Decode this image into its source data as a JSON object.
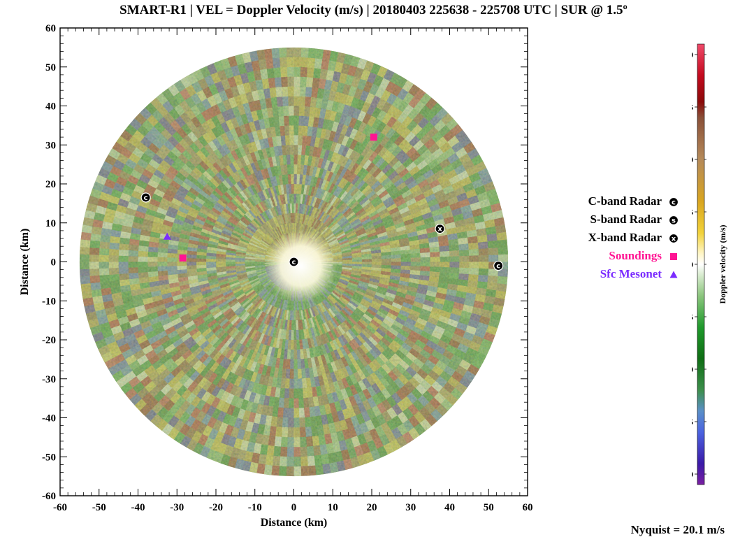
{
  "title": "SMART-R1 | VEL = Doppler Velocity (m/s) | 20180403 225638 - 225708 UTC | SUR @ 1.5º",
  "nyquist_label": "Nyquist = 20.1 m/s",
  "legend": [
    {
      "label": "C-band Radar",
      "symbol": "C",
      "color": "#000000",
      "kind": "radar"
    },
    {
      "label": "S-band Radar",
      "symbol": "S",
      "color": "#000000",
      "kind": "radar"
    },
    {
      "label": "X-band Radar",
      "symbol": "X",
      "color": "#000000",
      "kind": "radar"
    },
    {
      "label": "Soundings",
      "symbol": "square",
      "color": "#ff1493",
      "kind": "square"
    },
    {
      "label": "Sfc Mesonet",
      "symbol": "triangle",
      "color": "#7b2cff",
      "kind": "triangle"
    }
  ],
  "chart_data": {
    "type": "heatmap",
    "subtype": "radar-ppi",
    "title": "SMART-R1 | VEL = Doppler Velocity (m/s) | 20180403 225638 - 225708 UTC | SUR @ 1.5º",
    "xlabel": "Distance (km)",
    "ylabel": "Distance (km)",
    "xlim": [
      -60,
      60
    ],
    "ylim": [
      -60,
      60
    ],
    "xticks": [
      -60,
      -50,
      -40,
      -30,
      -20,
      -10,
      0,
      10,
      20,
      30,
      40,
      50,
      60
    ],
    "yticks": [
      -60,
      -50,
      -40,
      -30,
      -20,
      -10,
      0,
      10,
      20,
      30,
      40,
      50,
      60
    ],
    "grid": false,
    "radar_range_km": 55,
    "markers": [
      {
        "kind": "C-band Radar",
        "x": -38,
        "y": 16.5
      },
      {
        "kind": "C-band Radar",
        "x": 0,
        "y": 0
      },
      {
        "kind": "C-band Radar",
        "x": 52.5,
        "y": -1
      },
      {
        "kind": "X-band Radar",
        "x": 37.5,
        "y": 8.5
      },
      {
        "kind": "Soundings",
        "x": 20.5,
        "y": 32
      },
      {
        "kind": "Soundings",
        "x": -28.5,
        "y": 1
      },
      {
        "kind": "Sfc Mesonet",
        "x": -32.5,
        "y": 6.5
      }
    ],
    "colorbar": {
      "label": "Doppler velocity (m/s)",
      "range": [
        -21,
        21
      ],
      "ticks": [
        -20,
        -15,
        -10,
        -5,
        0,
        5,
        10,
        15,
        20
      ],
      "stops": [
        {
          "v": -21,
          "color": "#7a1fa2"
        },
        {
          "v": -19,
          "color": "#3a1aa8"
        },
        {
          "v": -16,
          "color": "#4b63e0"
        },
        {
          "v": -14,
          "color": "#5a8fc8"
        },
        {
          "v": -12,
          "color": "#3d8f4c"
        },
        {
          "v": -9,
          "color": "#0f6e14"
        },
        {
          "v": -6,
          "color": "#1f9a2c"
        },
        {
          "v": -3,
          "color": "#8cc67e"
        },
        {
          "v": -1,
          "color": "#d9ecd0"
        },
        {
          "v": 0,
          "color": "#ffffff"
        },
        {
          "v": 1,
          "color": "#fff6c8"
        },
        {
          "v": 3,
          "color": "#f2d23a"
        },
        {
          "v": 6,
          "color": "#d9a520"
        },
        {
          "v": 10,
          "color": "#b58a5a"
        },
        {
          "v": 14,
          "color": "#8a5038"
        },
        {
          "v": 15.5,
          "color": "#8b0a0a"
        },
        {
          "v": 18,
          "color": "#c40a1e"
        },
        {
          "v": 21,
          "color": "#f04a6a"
        }
      ]
    }
  }
}
